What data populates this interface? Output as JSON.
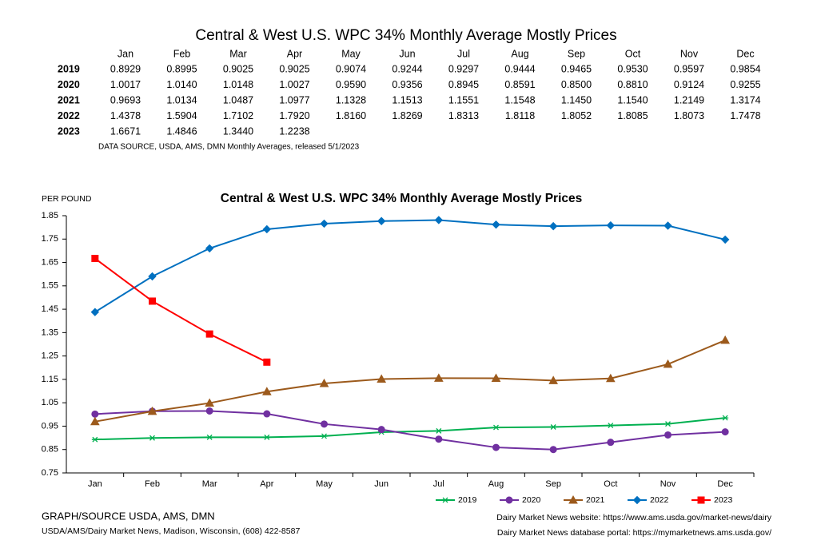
{
  "table": {
    "title": "Central & West U.S. WPC 34% Monthly Average Mostly Prices",
    "columns": [
      "Jan",
      "Feb",
      "Mar",
      "Apr",
      "May",
      "Jun",
      "Jul",
      "Aug",
      "Sep",
      "Oct",
      "Nov",
      "Dec"
    ],
    "rows": [
      {
        "label": "2019",
        "values": [
          "0.8929",
          "0.8995",
          "0.9025",
          "0.9025",
          "0.9074",
          "0.9244",
          "0.9297",
          "0.9444",
          "0.9465",
          "0.9530",
          "0.9597",
          "0.9854"
        ]
      },
      {
        "label": "2020",
        "values": [
          "1.0017",
          "1.0140",
          "1.0148",
          "1.0027",
          "0.9590",
          "0.9356",
          "0.8945",
          "0.8591",
          "0.8500",
          "0.8810",
          "0.9124",
          "0.9255"
        ]
      },
      {
        "label": "2021",
        "values": [
          "0.9693",
          "1.0134",
          "1.0487",
          "1.0977",
          "1.1328",
          "1.1513",
          "1.1551",
          "1.1548",
          "1.1450",
          "1.1540",
          "1.2149",
          "1.3174"
        ]
      },
      {
        "label": "2022",
        "values": [
          "1.4378",
          "1.5904",
          "1.7102",
          "1.7920",
          "1.8160",
          "1.8269",
          "1.8313",
          "1.8118",
          "1.8052",
          "1.8085",
          "1.8073",
          "1.7478"
        ]
      },
      {
        "label": "2023",
        "values": [
          "1.6671",
          "1.4846",
          "1.3440",
          "1.2238"
        ]
      }
    ],
    "source": "DATA SOURCE, USDA, AMS, DMN Monthly Averages, released 5/1/2023"
  },
  "chart_data": {
    "type": "line",
    "title": "Central & West U.S. WPC 34% Monthly Average Mostly Prices",
    "y_label": "PER POUND",
    "categories": [
      "Jan",
      "Feb",
      "Mar",
      "Apr",
      "May",
      "Jun",
      "Jul",
      "Aug",
      "Sep",
      "Oct",
      "Nov",
      "Dec"
    ],
    "series": [
      {
        "name": "2019",
        "color": "#00b050",
        "marker": "star",
        "values": [
          0.8929,
          0.8995,
          0.9025,
          0.9025,
          0.9074,
          0.9244,
          0.9297,
          0.9444,
          0.9465,
          0.953,
          0.9597,
          0.9854
        ]
      },
      {
        "name": "2020",
        "color": "#7030a0",
        "marker": "circle",
        "values": [
          1.0017,
          1.014,
          1.0148,
          1.0027,
          0.959,
          0.9356,
          0.8945,
          0.8591,
          0.85,
          0.881,
          0.9124,
          0.9255
        ]
      },
      {
        "name": "2021",
        "color": "#9c5a1c",
        "marker": "triangle",
        "values": [
          0.9693,
          1.0134,
          1.0487,
          1.0977,
          1.1328,
          1.1513,
          1.1551,
          1.1548,
          1.145,
          1.154,
          1.2149,
          1.3174
        ]
      },
      {
        "name": "2022",
        "color": "#0070c0",
        "marker": "diamond",
        "values": [
          1.4378,
          1.5904,
          1.7102,
          1.792,
          1.816,
          1.8269,
          1.8313,
          1.8118,
          1.8052,
          1.8085,
          1.8073,
          1.7478
        ]
      },
      {
        "name": "2023",
        "color": "#ff0000",
        "marker": "square",
        "values": [
          1.6671,
          1.4846,
          1.344,
          1.2238,
          null,
          null,
          null,
          null,
          null,
          null,
          null,
          null
        ]
      }
    ],
    "ylim": [
      0.75,
      1.85
    ],
    "yticks": [
      0.75,
      0.85,
      0.95,
      1.05,
      1.15,
      1.25,
      1.35,
      1.45,
      1.55,
      1.65,
      1.75,
      1.85
    ],
    "legend": "bottom-right"
  },
  "footer": {
    "left": [
      "GRAPH/SOURCE USDA, AMS, DMN",
      "USDA/AMS/Dairy Market News, Madison, Wisconsin, (608) 422-8587"
    ],
    "right": [
      "Dairy Market News website:  https://www.ams.usda.gov/market-news/dairy",
      "Dairy Market News database portal:  https://mymarketnews.ams.usda.gov/"
    ]
  }
}
